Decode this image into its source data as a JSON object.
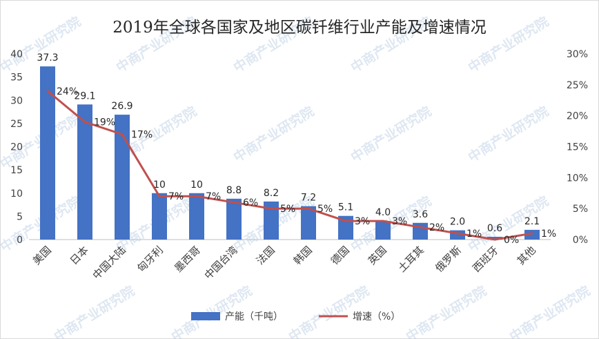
{
  "chart_data": {
    "type": "bar",
    "title": "2019年全球各国家及地区碳钎维行业产能及增速情况",
    "categories": [
      "美国",
      "日本",
      "中国大陆",
      "匈牙利",
      "墨西哥",
      "中国台湾",
      "法国",
      "韩国",
      "德国",
      "英国",
      "土耳其",
      "俄罗斯",
      "西班牙",
      "其他"
    ],
    "series": [
      {
        "name": "产能（千吨）",
        "type": "bar",
        "axis": "left",
        "color": "#4472c4",
        "values": [
          37.3,
          29.1,
          26.9,
          10,
          10,
          8.8,
          8.2,
          7.2,
          5.1,
          4.0,
          3.6,
          2.0,
          0.6,
          2.1
        ],
        "labels": [
          "37.3",
          "29.1",
          "26.9",
          "10",
          "10",
          "8.8",
          "8.2",
          "7.2",
          "5.1",
          "4.0",
          "3.6",
          "2.0",
          "0.6",
          "2.1"
        ]
      },
      {
        "name": "增速（%）",
        "type": "line",
        "axis": "right",
        "color": "#c0504d",
        "values": [
          24,
          19,
          17,
          7,
          7,
          6,
          5,
          5,
          3,
          3,
          2,
          1,
          0,
          1
        ],
        "labels": [
          "24%",
          "19%",
          "17%",
          "7%",
          "7%",
          "6%",
          "5%",
          "5%",
          "3%",
          "3%",
          "2%",
          "1%",
          "0%",
          "1%"
        ]
      }
    ],
    "ylim": [
      0,
      40
    ],
    "y_ticks": [
      "0",
      "5",
      "10",
      "15",
      "20",
      "25",
      "30",
      "35",
      "40"
    ],
    "y2lim": [
      0,
      30
    ],
    "y2_ticks": [
      "0%",
      "5%",
      "10%",
      "15%",
      "20%",
      "25%",
      "30%"
    ],
    "legend_position": "bottom",
    "grid": false
  },
  "watermark": "中商产业研究院"
}
